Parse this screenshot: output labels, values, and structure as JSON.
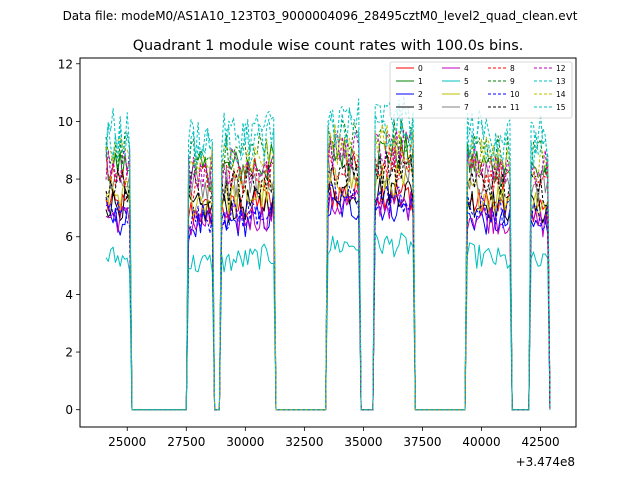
{
  "figure": {
    "suptitle": "Data file: modeM0/AS1A10_123T03_9000004096_28495cztM0_level2_quad_clean.evt"
  },
  "chart_data": {
    "type": "line",
    "title": "Quadrant 1 module wise count rates with 100.0s bins.",
    "xlabel": "",
    "ylabel": "",
    "x_offset_label": "+3.474e8",
    "xlim": [
      23000,
      44000
    ],
    "ylim": [
      -0.6,
      12.2
    ],
    "xticks": [
      25000,
      27500,
      30000,
      32500,
      35000,
      37500,
      40000,
      42500
    ],
    "xtick_labels": [
      "25000",
      "27500",
      "30000",
      "32500",
      "35000",
      "37500",
      "40000",
      "42500"
    ],
    "yticks": [
      0,
      2,
      4,
      6,
      8,
      10,
      12
    ],
    "ytick_labels": [
      "0",
      "2",
      "4",
      "6",
      "8",
      "10",
      "12"
    ],
    "bin_seconds": 100,
    "grid": false,
    "legend_position": "top-right",
    "active_segments": [
      {
        "start": 24100,
        "end": 25100
      },
      {
        "start": 27600,
        "end": 28600
      },
      {
        "start": 29000,
        "end": 31200
      },
      {
        "start": 33500,
        "end": 34800
      },
      {
        "start": 35500,
        "end": 37100
      },
      {
        "start": 39400,
        "end": 41200
      },
      {
        "start": 42100,
        "end": 42800
      }
    ],
    "gap_level": 0,
    "series": [
      {
        "name": "0",
        "color": "#ff0000",
        "dashed": false,
        "base": 7.2
      },
      {
        "name": "1",
        "color": "#008000",
        "dashed": false,
        "base": 8.6
      },
      {
        "name": "2",
        "color": "#0000ff",
        "dashed": false,
        "base": 6.7
      },
      {
        "name": "3",
        "color": "#000000",
        "dashed": false,
        "base": 7.3
      },
      {
        "name": "4",
        "color": "#bf00bf",
        "dashed": false,
        "base": 6.8
      },
      {
        "name": "5",
        "color": "#00bfbf",
        "dashed": false,
        "base": 5.4
      },
      {
        "name": "6",
        "color": "#bfbf00",
        "dashed": false,
        "base": 7.6
      },
      {
        "name": "7",
        "color": "#808080",
        "dashed": false,
        "base": 8.2
      },
      {
        "name": "8",
        "color": "#ff0000",
        "dashed": true,
        "base": 8.3
      },
      {
        "name": "9",
        "color": "#008000",
        "dashed": true,
        "base": 9.1
      },
      {
        "name": "10",
        "color": "#0000ff",
        "dashed": true,
        "base": 7.0
      },
      {
        "name": "11",
        "color": "#000000",
        "dashed": true,
        "base": 8.0
      },
      {
        "name": "12",
        "color": "#bf00bf",
        "dashed": true,
        "base": 8.7
      },
      {
        "name": "13",
        "color": "#00bfbf",
        "dashed": true,
        "base": 9.8
      },
      {
        "name": "14",
        "color": "#bfbf00",
        "dashed": true,
        "base": 8.9
      },
      {
        "name": "15",
        "color": "#00bfbf",
        "dashed": true,
        "base": 9.4
      }
    ]
  }
}
